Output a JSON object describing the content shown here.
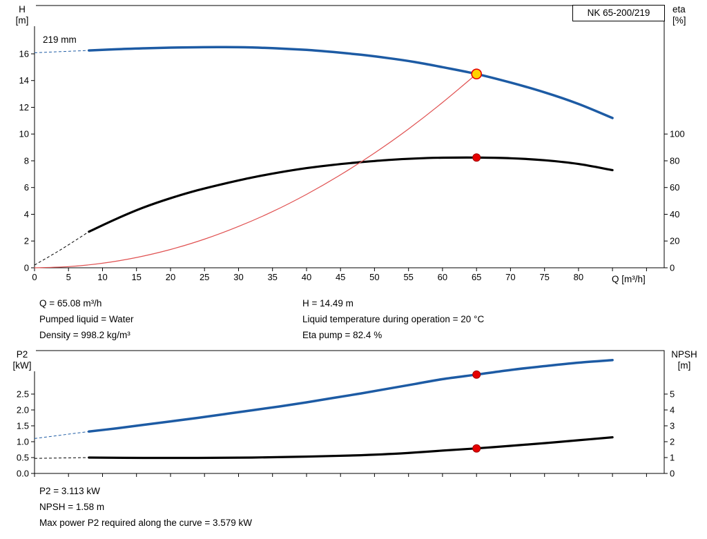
{
  "header": {
    "model": "NK 65-200/219"
  },
  "info": {
    "top_left": [
      "Q = 65.08 m³/h",
      "Pumped liquid = Water",
      "Density = 998.2 kg/m³"
    ],
    "top_right": [
      "H = 14.49 m",
      "Liquid temperature during operation = 20 °C",
      "Eta pump = 82.4 %"
    ],
    "bottom": [
      "P2 = 3.113 kW",
      "NPSH = 1.58 m",
      "Max power P2 required along the curve = 3.579 kW"
    ]
  },
  "colors": {
    "curve_blue": "#1d5ba4",
    "curve_black": "#000000",
    "system_red": "#e05050",
    "marker_red": "#e60000",
    "marker_yellow": "#ffd200"
  },
  "chart_data": [
    {
      "id": "hq-eta-chart",
      "type": "line",
      "title": "NK 65-200/219",
      "annotation": "219 mm",
      "grid": false,
      "x_axis": {
        "label": "Q [m³/h]",
        "range": [
          0,
          92.6
        ],
        "ticks": [
          0,
          5,
          10,
          15,
          20,
          25,
          30,
          35,
          40,
          45,
          50,
          55,
          60,
          65,
          70,
          75,
          80,
          85,
          90
        ],
        "tick_labels": [
          "0",
          "5",
          "10",
          "15",
          "20",
          "25",
          "30",
          "35",
          "40",
          "45",
          "50",
          "55",
          "60",
          "65",
          "70",
          "75",
          "80"
        ]
      },
      "y_left": {
        "label": [
          "H",
          "[m]"
        ],
        "range": [
          0,
          19.61
        ],
        "ticks": [
          0,
          2,
          4,
          6,
          8,
          10,
          12,
          14,
          16
        ],
        "tick_labels": [
          "0",
          "2",
          "4",
          "6",
          "8",
          "10",
          "12",
          "14",
          "16"
        ]
      },
      "y_right": {
        "label": [
          "eta",
          "[%]"
        ],
        "range": [
          0,
          196.1
        ],
        "ticks": [
          0,
          20,
          40,
          60,
          80,
          100
        ],
        "tick_labels": [
          "0",
          "20",
          "40",
          "60",
          "80",
          "100"
        ]
      },
      "series": [
        {
          "name": "eta-curve",
          "axis": "right",
          "color": "#000000",
          "width": 3.2,
          "dashed": [
            [
              0,
              2
            ],
            [
              4,
              14
            ],
            [
              8,
              27
            ]
          ],
          "points": [
            [
              8,
              27
            ],
            [
              12,
              36.5
            ],
            [
              16,
              45
            ],
            [
              20,
              52
            ],
            [
              24,
              58
            ],
            [
              28,
              63
            ],
            [
              32,
              67.5
            ],
            [
              36,
              71.3
            ],
            [
              40,
              74.5
            ],
            [
              44,
              77
            ],
            [
              48,
              79
            ],
            [
              52,
              80.6
            ],
            [
              56,
              81.7
            ],
            [
              60,
              82.3
            ],
            [
              65,
              82.4
            ],
            [
              70,
              81.9
            ],
            [
              75,
              80.4
            ],
            [
              80,
              77.6
            ],
            [
              85,
              73
            ]
          ]
        },
        {
          "name": "h-curve",
          "axis": "left",
          "color": "#1d5ba4",
          "width": 3.5,
          "dashed": [
            [
              0,
              16.08
            ],
            [
              8,
              16.25
            ]
          ],
          "points": [
            [
              8,
              16.25
            ],
            [
              12,
              16.34
            ],
            [
              16,
              16.41
            ],
            [
              20,
              16.46
            ],
            [
              24,
              16.49
            ],
            [
              28,
              16.5
            ],
            [
              32,
              16.47
            ],
            [
              36,
              16.4
            ],
            [
              40,
              16.29
            ],
            [
              44,
              16.13
            ],
            [
              48,
              15.93
            ],
            [
              52,
              15.68
            ],
            [
              56,
              15.38
            ],
            [
              60,
              15.0
            ],
            [
              65,
              14.49
            ],
            [
              70,
              13.85
            ],
            [
              75,
              13.12
            ],
            [
              80,
              12.25
            ],
            [
              85,
              11.2
            ]
          ]
        },
        {
          "name": "system-curve",
          "axis": "left",
          "color": "#e05050",
          "width": 1.2,
          "points": [
            [
              0,
              0
            ],
            [
              5,
              0.09
            ],
            [
              10,
              0.34
            ],
            [
              15,
              0.77
            ],
            [
              20,
              1.37
            ],
            [
              25,
              2.14
            ],
            [
              30,
              3.09
            ],
            [
              35,
              4.2
            ],
            [
              40,
              5.49
            ],
            [
              45,
              6.95
            ],
            [
              50,
              8.58
            ],
            [
              55,
              10.38
            ],
            [
              60,
              12.36
            ],
            [
              65,
              14.49
            ]
          ]
        }
      ],
      "markers": [
        {
          "name": "duty-point-marker",
          "x": 65,
          "y": 14.49,
          "axis": "left",
          "r": 7,
          "fill": "#ffd200",
          "stroke": "#e60000",
          "sw": 1.6
        },
        {
          "name": "eta-point-marker",
          "x": 65,
          "y": 82.4,
          "axis": "right",
          "r": 5.5,
          "fill": "#e60000",
          "stroke": "#a00000",
          "sw": 1
        }
      ]
    },
    {
      "id": "p2-npsh-chart",
      "type": "line",
      "title": "",
      "grid": false,
      "x_axis": {
        "label": "",
        "range": [
          0,
          92.6
        ],
        "ticks": [
          0,
          5,
          10,
          15,
          20,
          25,
          30,
          35,
          40,
          45,
          50,
          55,
          60,
          65,
          70,
          75,
          80,
          85,
          90
        ],
        "tick_labels": []
      },
      "y_left": {
        "label": [
          "P2",
          "[kW]"
        ],
        "range": [
          0,
          3.87
        ],
        "ticks": [
          0,
          0.5,
          1,
          1.5,
          2,
          2.5
        ],
        "tick_labels": [
          "0.0",
          "0.5",
          "1.0",
          "1.5",
          "2.0",
          "2.5"
        ]
      },
      "y_right": {
        "label": [
          "NPSH",
          "[m]"
        ],
        "range": [
          0,
          7.74
        ],
        "ticks": [
          0,
          1,
          2,
          3,
          4,
          5
        ],
        "tick_labels": [
          "0",
          "1",
          "2",
          "3",
          "4",
          "5"
        ]
      },
      "series": [
        {
          "name": "npsh-curve",
          "axis": "right",
          "color": "#000000",
          "width": 3.2,
          "dashed": [
            [
              0,
              0.95
            ],
            [
              8,
              1.0
            ]
          ],
          "points": [
            [
              8,
              1.0
            ],
            [
              16,
              0.98
            ],
            [
              24,
              0.98
            ],
            [
              32,
              1.0
            ],
            [
              40,
              1.06
            ],
            [
              48,
              1.15
            ],
            [
              52,
              1.22
            ],
            [
              56,
              1.32
            ],
            [
              60,
              1.44
            ],
            [
              65,
              1.58
            ],
            [
              70,
              1.74
            ],
            [
              75,
              1.91
            ],
            [
              80,
              2.09
            ],
            [
              85,
              2.28
            ]
          ]
        },
        {
          "name": "p2-curve",
          "axis": "left",
          "color": "#1d5ba4",
          "width": 3.5,
          "dashed": [
            [
              0,
              1.1
            ],
            [
              8,
              1.32
            ]
          ],
          "points": [
            [
              8,
              1.32
            ],
            [
              12,
              1.42
            ],
            [
              16,
              1.53
            ],
            [
              20,
              1.64
            ],
            [
              24,
              1.75
            ],
            [
              28,
              1.87
            ],
            [
              32,
              1.99
            ],
            [
              36,
              2.11
            ],
            [
              40,
              2.24
            ],
            [
              44,
              2.38
            ],
            [
              48,
              2.52
            ],
            [
              52,
              2.67
            ],
            [
              56,
              2.82
            ],
            [
              60,
              2.97
            ],
            [
              65,
              3.113
            ],
            [
              70,
              3.26
            ],
            [
              75,
              3.38
            ],
            [
              80,
              3.49
            ],
            [
              85,
              3.57
            ]
          ]
        }
      ],
      "markers": [
        {
          "name": "p2-point-marker",
          "x": 65,
          "y": 3.113,
          "axis": "left",
          "r": 5.5,
          "fill": "#e60000",
          "stroke": "#a00000",
          "sw": 1
        },
        {
          "name": "npsh-point-marker",
          "x": 65,
          "y": 1.58,
          "axis": "right",
          "r": 5.5,
          "fill": "#e60000",
          "stroke": "#a00000",
          "sw": 1
        }
      ]
    }
  ]
}
